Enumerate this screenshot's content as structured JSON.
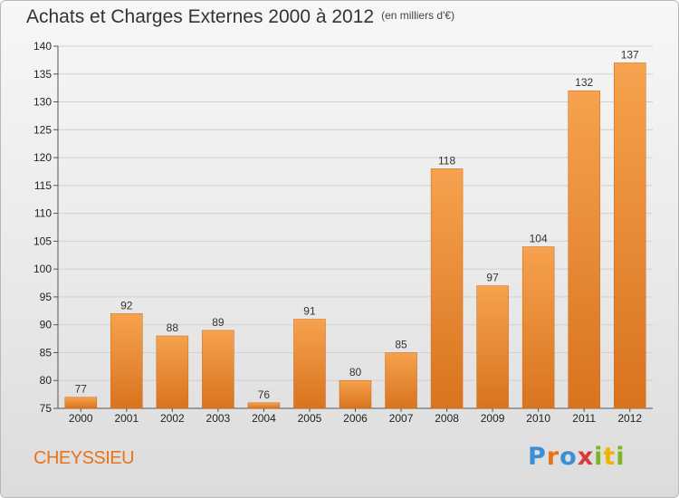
{
  "header": {
    "title": "Achats et Charges Externes 2000 à 2012",
    "unit": "(en milliers d'€)"
  },
  "footer": {
    "commune": "CHEYSSIEU",
    "logo": "Proxiti",
    "logo_colors": [
      "#3b8fd6",
      "#e8731a",
      "#3b8fd6",
      "#d83a3a",
      "#7ab51d",
      "#f0b400",
      "#7ab51d"
    ]
  },
  "colors": {
    "bar_light": "#f6a24e",
    "bar_dark": "#d9731e",
    "axis": "#555555",
    "grid": "#d0d0d0"
  },
  "chart_data": {
    "type": "bar",
    "categories": [
      "2000",
      "2001",
      "2002",
      "2003",
      "2004",
      "2005",
      "2006",
      "2007",
      "2008",
      "2009",
      "2010",
      "2011",
      "2012"
    ],
    "values": [
      77,
      92,
      88,
      89,
      76,
      91,
      80,
      85,
      118,
      97,
      104,
      132,
      137
    ],
    "ylim": [
      75,
      140
    ],
    "yticks": [
      75,
      80,
      85,
      90,
      95,
      100,
      105,
      110,
      115,
      120,
      125,
      130,
      135,
      140
    ],
    "grid": true,
    "legend": "none"
  }
}
